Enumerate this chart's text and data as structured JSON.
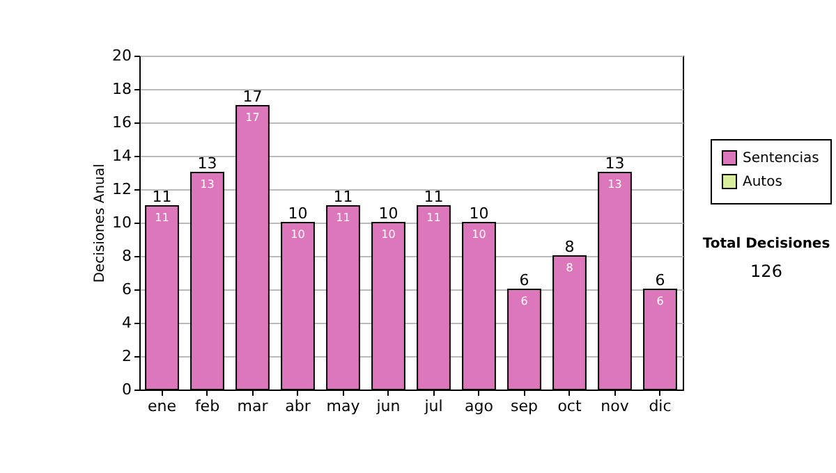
{
  "chart_data": {
    "type": "bar",
    "stacked": true,
    "ylabel": "Decisiones Anual",
    "categories": [
      "ene",
      "feb",
      "mar",
      "abr",
      "may",
      "jun",
      "jul",
      "ago",
      "sep",
      "oct",
      "nov",
      "dic"
    ],
    "series": [
      {
        "name": "Sentencias",
        "color": "#dd77bb",
        "values": [
          11,
          13,
          17,
          10,
          11,
          10,
          11,
          10,
          6,
          8,
          13,
          6
        ]
      },
      {
        "name": "Autos",
        "color": "#d8ee9c",
        "values": [
          null,
          null,
          null,
          null,
          null,
          null,
          null,
          null,
          null,
          null,
          null,
          null
        ]
      }
    ],
    "totals": [
      "11",
      "13",
      "17",
      "10",
      "11",
      "10",
      "11",
      "10",
      "6",
      "8",
      "13",
      "6"
    ],
    "data_labels": true,
    "ylim": [
      0,
      20
    ],
    "yticks": [
      0,
      2,
      4,
      6,
      8,
      10,
      12,
      14,
      16,
      18,
      20
    ],
    "grid": "y",
    "legend": "right",
    "annotations": [
      "Total Decisiones",
      "126"
    ]
  }
}
